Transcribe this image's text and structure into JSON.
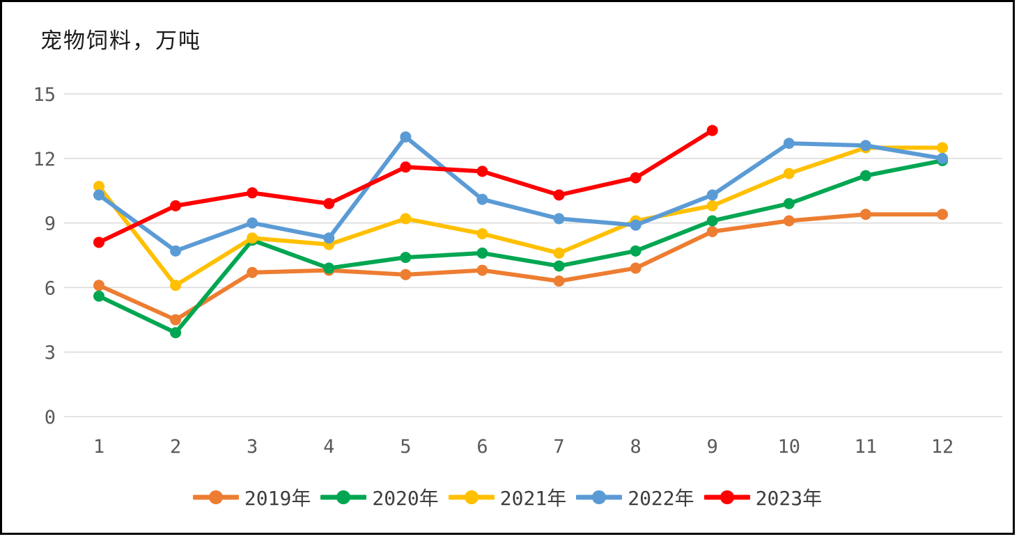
{
  "title": "宠物饲料，万吨",
  "chart_data": {
    "type": "line",
    "title": "宠物饲料，万吨",
    "xlabel": "",
    "ylabel": "",
    "x": [
      1,
      2,
      3,
      4,
      5,
      6,
      7,
      8,
      9,
      10,
      11,
      12
    ],
    "ylim": [
      0,
      15
    ],
    "yticks": [
      0,
      3,
      6,
      9,
      12,
      15
    ],
    "grid": true,
    "legend_position": "bottom",
    "gridline_color": "#d9d9d9",
    "tick_color": "#595959",
    "series": [
      {
        "name": "2019年",
        "color": "#ED7D31",
        "values": [
          6.1,
          4.5,
          6.7,
          6.8,
          6.6,
          6.8,
          6.3,
          6.9,
          8.6,
          9.1,
          9.4,
          9.4
        ]
      },
      {
        "name": "2020年",
        "color": "#00A651",
        "values": [
          5.6,
          3.9,
          8.2,
          6.9,
          7.4,
          7.6,
          7.0,
          7.7,
          9.1,
          9.9,
          11.2,
          11.9
        ]
      },
      {
        "name": "2021年",
        "color": "#FFC000",
        "values": [
          10.7,
          6.1,
          8.3,
          8.0,
          9.2,
          8.5,
          7.6,
          9.1,
          9.8,
          11.3,
          12.5,
          12.5
        ]
      },
      {
        "name": "2022年",
        "color": "#5B9BD5",
        "values": [
          10.3,
          7.7,
          9.0,
          8.3,
          13.0,
          10.1,
          9.2,
          8.9,
          10.3,
          12.7,
          12.6,
          12.0
        ]
      },
      {
        "name": "2023年",
        "color": "#FF0000",
        "values": [
          8.1,
          9.8,
          10.4,
          9.9,
          11.6,
          11.4,
          10.3,
          11.1,
          13.3,
          null,
          null,
          null
        ]
      }
    ]
  }
}
